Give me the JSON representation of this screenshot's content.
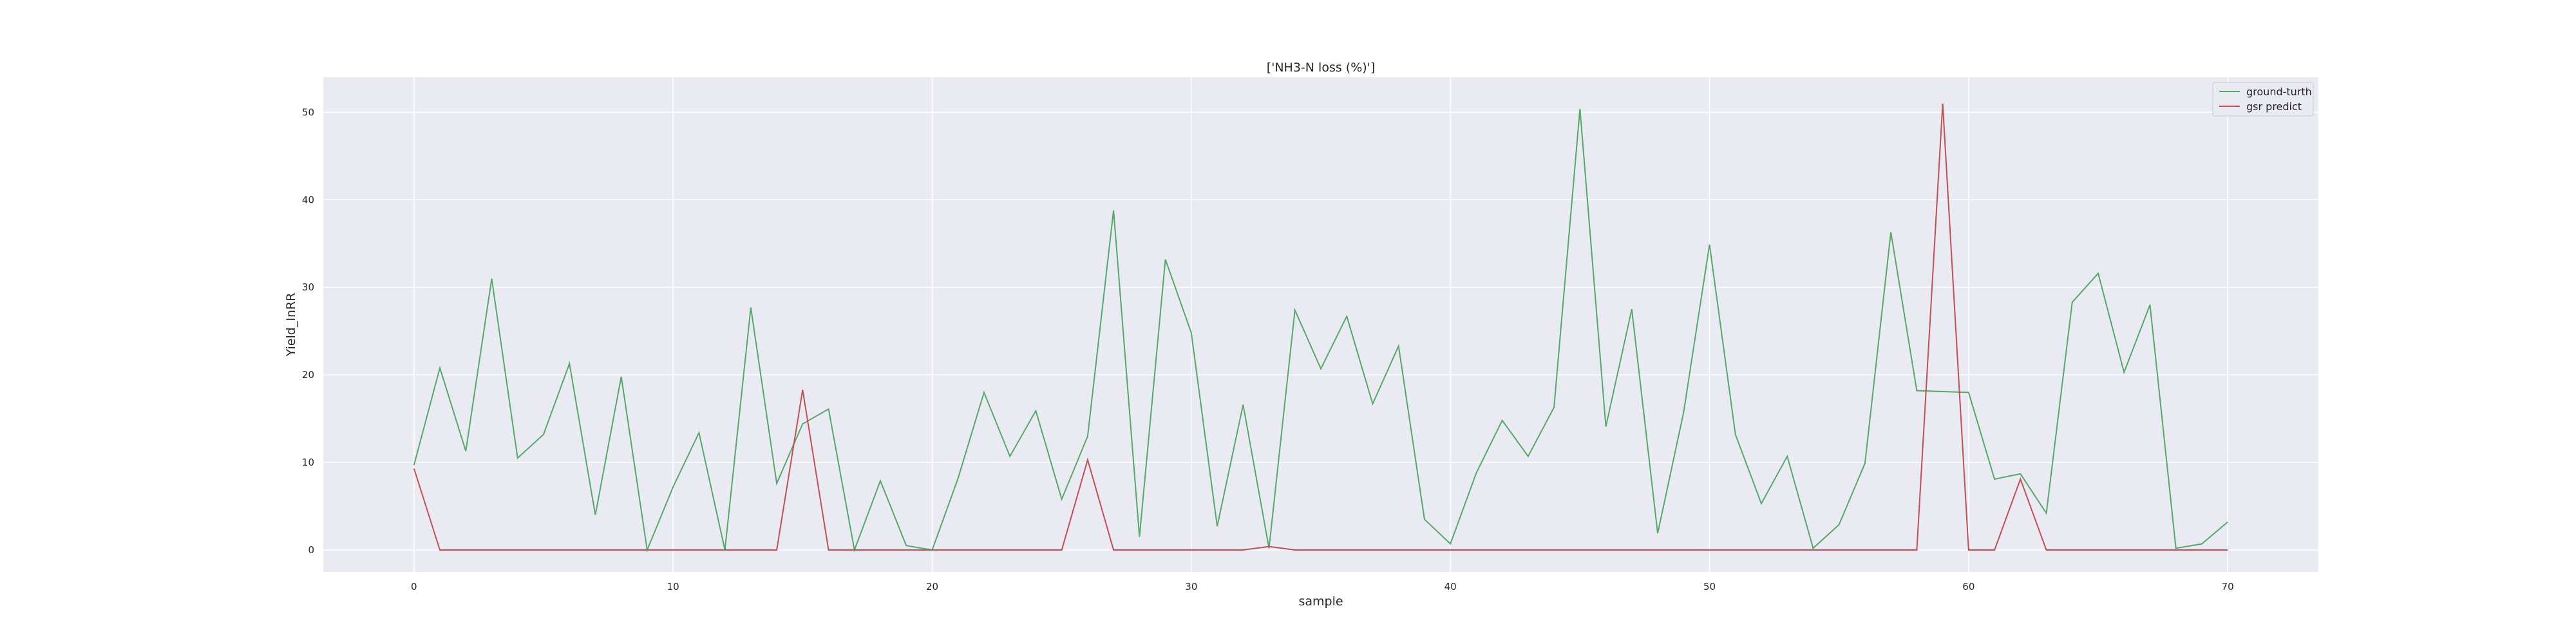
{
  "chart_data": {
    "type": "line",
    "title": "['NH3-N loss (%)']",
    "xlabel": "sample",
    "ylabel": "Yield_InRR",
    "xlim": [
      -3.5,
      73.5
    ],
    "ylim": [
      -2.5,
      54
    ],
    "xticks": [
      0,
      10,
      20,
      30,
      40,
      50,
      60,
      70
    ],
    "yticks": [
      0,
      10,
      20,
      30,
      40,
      50
    ],
    "grid": true,
    "legend_position": "top-right",
    "x": [
      0,
      1,
      2,
      3,
      4,
      5,
      6,
      7,
      8,
      9,
      10,
      11,
      12,
      13,
      14,
      15,
      16,
      17,
      18,
      19,
      20,
      21,
      22,
      23,
      24,
      25,
      26,
      27,
      28,
      29,
      30,
      31,
      32,
      33,
      34,
      35,
      36,
      37,
      38,
      39,
      40,
      41,
      42,
      43,
      44,
      45,
      46,
      47,
      48,
      49,
      50,
      51,
      52,
      53,
      54,
      55,
      56,
      57,
      58,
      59,
      60,
      61,
      62,
      63,
      64,
      65,
      66,
      67,
      68,
      69,
      70
    ],
    "series": [
      {
        "name": "ground-turth",
        "color": "#55a868",
        "values": [
          9.7,
          20.8,
          11.3,
          31.0,
          10.5,
          13.2,
          21.3,
          4.0,
          19.8,
          0.0,
          7.2,
          13.4,
          0.0,
          27.7,
          7.6,
          14.4,
          16.1,
          0.0,
          7.9,
          0.5,
          0.0,
          8.2,
          18.0,
          10.7,
          15.9,
          5.8,
          13.0,
          38.8,
          1.5,
          33.2,
          24.8,
          2.7,
          16.6,
          0.2,
          27.4,
          20.7,
          26.7,
          16.7,
          23.3,
          3.5,
          0.7,
          8.8,
          14.8,
          10.7,
          16.3,
          50.4,
          14.1,
          27.5,
          1.9,
          15.7,
          34.9,
          13.2,
          5.3,
          10.7,
          0.2,
          2.9,
          9.9,
          36.3,
          18.2,
          18.1,
          18.0,
          8.1,
          8.7,
          4.2,
          28.3,
          31.6,
          20.3,
          28.0,
          0.2,
          0.7,
          3.2
        ]
      },
      {
        "name": "gsr predict",
        "color": "#c44e52",
        "values": [
          9.3,
          0.0,
          0.0,
          0.0,
          0.0,
          0.0,
          0.0,
          0.0,
          0.0,
          0.0,
          0.0,
          0.0,
          0.0,
          0.0,
          0.0,
          18.3,
          0.0,
          0.0,
          0.0,
          0.0,
          0.0,
          0.0,
          0.0,
          0.0,
          0.0,
          0.0,
          10.3,
          0.0,
          0.0,
          0.0,
          0.0,
          0.0,
          0.0,
          0.4,
          0.0,
          0.0,
          0.0,
          0.0,
          0.0,
          0.0,
          0.0,
          0.0,
          0.0,
          0.0,
          0.0,
          0.0,
          0.0,
          0.0,
          0.0,
          0.0,
          0.0,
          0.0,
          0.0,
          0.0,
          0.0,
          0.0,
          0.0,
          0.0,
          0.0,
          51.0,
          0.0,
          0.0,
          8.1,
          0.0,
          0.0,
          0.0,
          0.0,
          0.0,
          0.0,
          0.0,
          0.0
        ]
      }
    ]
  }
}
